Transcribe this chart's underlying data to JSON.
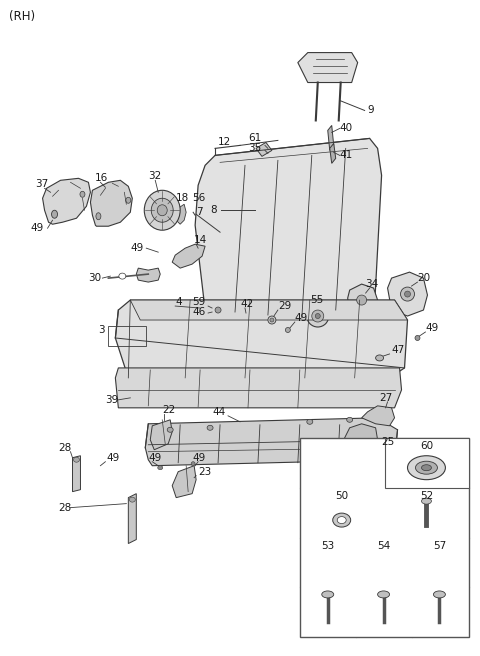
{
  "title": "(RH)",
  "bg_color": "#ffffff",
  "lc": "#3a3a3a",
  "tc": "#1a1a1a",
  "fw": 4.8,
  "fh": 6.56,
  "dpi": 100
}
